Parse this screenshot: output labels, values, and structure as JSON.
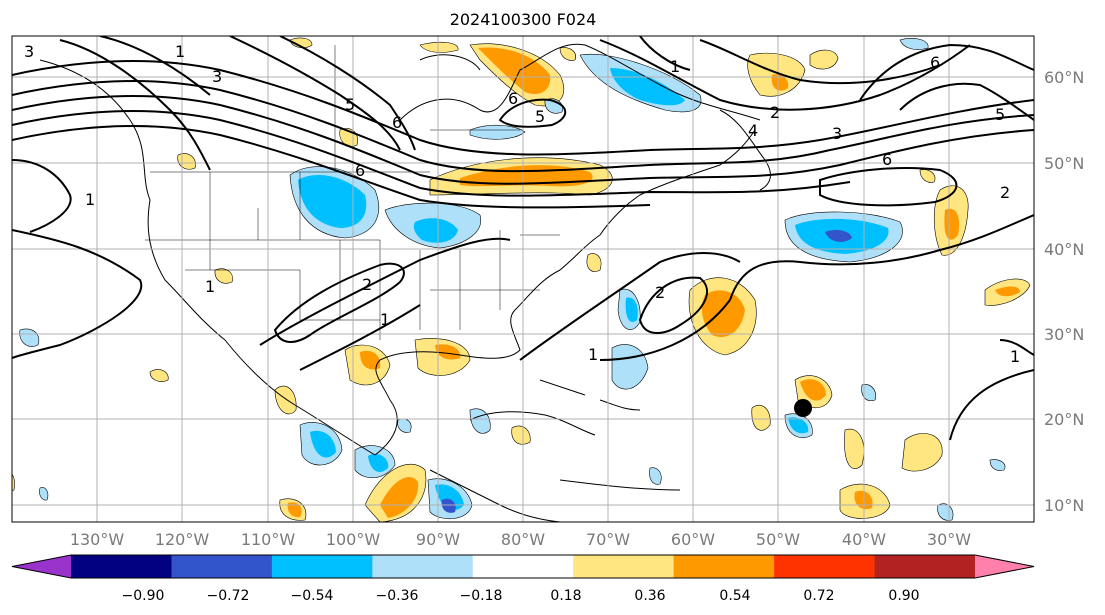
{
  "title": "2024100300 F024",
  "longitude_labels": [
    "130°W",
    "120°W",
    "110°W",
    "100°W",
    "90°W",
    "80°W",
    "70°W",
    "60°W",
    "50°W",
    "40°W",
    "30°W"
  ],
  "latitude_labels": [
    "60°N",
    "50°N",
    "40°N",
    "30°N",
    "20°N",
    "10°N"
  ],
  "colorbar": {
    "colors": [
      "#9933cc",
      "#000080",
      "#3355cc",
      "#00bfff",
      "#aee0fa",
      "#ffffff",
      "#ffe680",
      "#ff9900",
      "#ff3300",
      "#b22222",
      "#ff80aa"
    ],
    "tick_labels": [
      "−0.90",
      "−0.72",
      "−0.54",
      "−0.36",
      "−0.18",
      "0.18",
      "0.36",
      "0.54",
      "0.72",
      "0.90"
    ]
  },
  "contour_labels": [
    "1",
    "2",
    "3",
    "4",
    "5",
    "6"
  ],
  "storm_marker": {
    "lon": -47.5,
    "lat": 21.3
  }
}
